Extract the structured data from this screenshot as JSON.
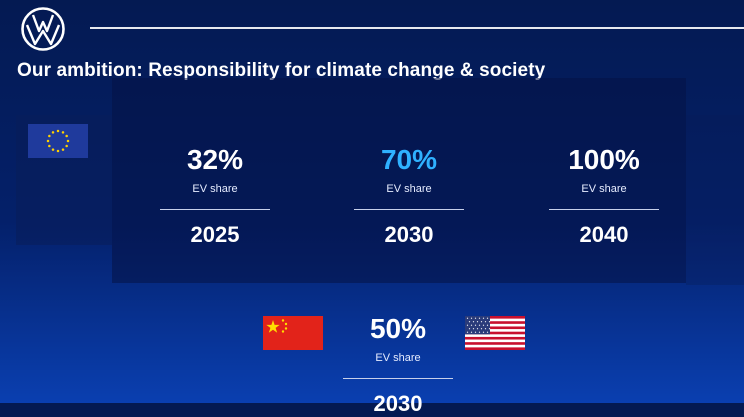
{
  "header": {
    "title": "Our ambition: Responsibility for climate change & society"
  },
  "brand": {
    "logo_icon": "vw-logo-icon",
    "text_color": "#ffffff",
    "accent_color": "#2fb1ff",
    "background_top": "#041a52",
    "background_bottom": "#0a3fb0"
  },
  "flags": {
    "eu": "eu-flag-icon",
    "china": "china-flag-icon",
    "usa": "usa-flag-icon"
  },
  "targets": [
    {
      "share": "32%",
      "label": "EV share",
      "year": "2025",
      "highlighted": false
    },
    {
      "share": "70%",
      "label": "EV share",
      "year": "2030",
      "highlighted": true
    },
    {
      "share": "100%",
      "label": "EV share",
      "year": "2040",
      "highlighted": false
    }
  ],
  "china_us_target": {
    "share": "50%",
    "label": "EV share",
    "year": "2030"
  }
}
